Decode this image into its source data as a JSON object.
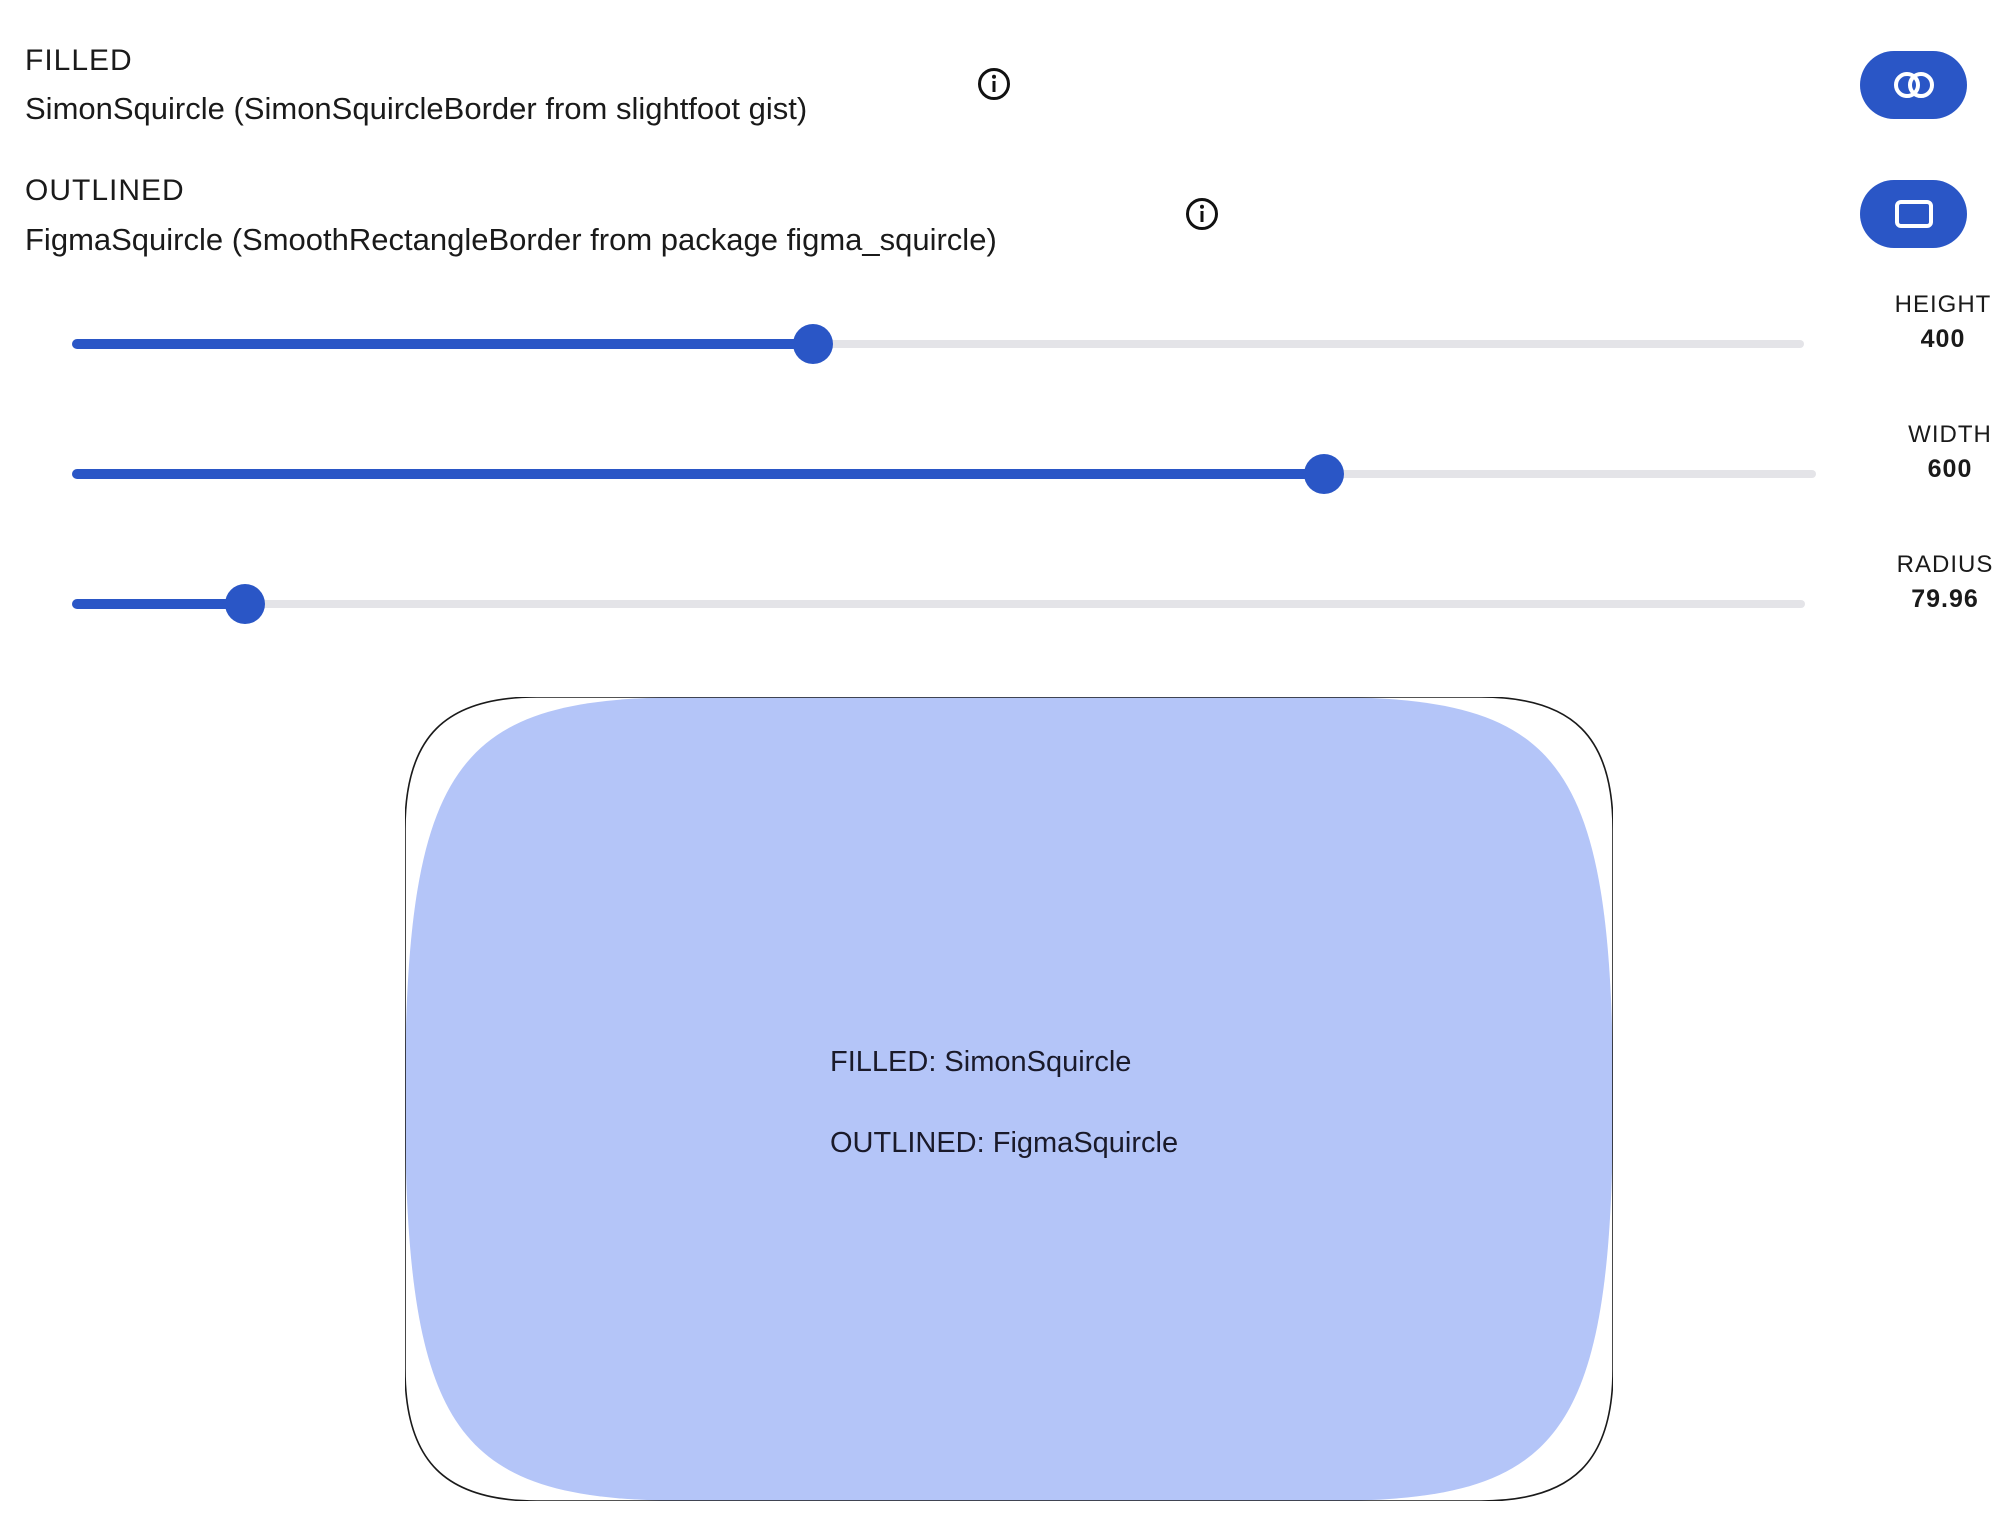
{
  "filled": {
    "label": "FILLED",
    "description": "SimonSquircle (SimonSquircleBorder from slightfoot gist)",
    "info_icon": "info-icon"
  },
  "outlined": {
    "label": "OUTLINED",
    "description": "FigmaSquircle (SmoothRectangleBorder from package figma_squircle)",
    "info_icon": "info-icon"
  },
  "buttons": {
    "filled_button_icon": "overlap-circles-icon",
    "outlined_button_icon": "rectangle-outline-icon",
    "accent_color": "#2a56c6"
  },
  "sliders": {
    "height": {
      "label": "HEIGHT",
      "value": "400",
      "fraction": 0.428
    },
    "width": {
      "label": "WIDTH",
      "value": "600",
      "fraction": 0.718
    },
    "radius": {
      "label": "RADIUS",
      "value": "79.96",
      "fraction": 0.1
    }
  },
  "preview": {
    "fill_color": "#b4c5f8",
    "outline_color": "#1a1a1a",
    "line1": "FILLED: SimonSquircle",
    "line2": "OUTLINED: FigmaSquircle"
  }
}
